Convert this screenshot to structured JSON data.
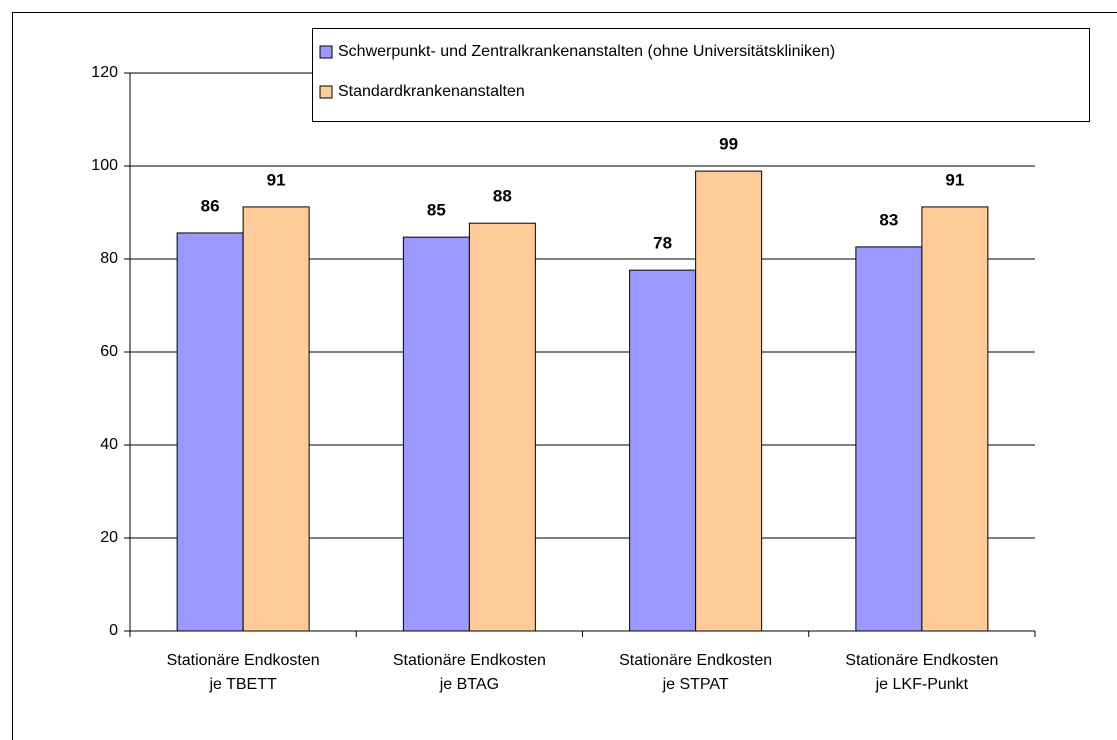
{
  "chart_data": {
    "type": "bar",
    "categories": [
      [
        "Stationäre Endkosten",
        "je TBETT"
      ],
      [
        "Stationäre Endkosten",
        "je BTAG"
      ],
      [
        "Stationäre Endkosten",
        "je STPAT"
      ],
      [
        "Stationäre Endkosten",
        "je LKF-Punkt"
      ]
    ],
    "series": [
      {
        "name": "Schwerpunkt- und Zentralkrankenanstalten (ohne Universitätskliniken)",
        "color": "#9999ff",
        "values": [
          85.6,
          84.7,
          77.6,
          82.6
        ],
        "value_labels": [
          "86",
          "85",
          "78",
          "83"
        ]
      },
      {
        "name": "Standardkrankenanstalten",
        "color": "#ffcc99",
        "values": [
          91.2,
          87.7,
          98.9,
          91.2
        ],
        "value_labels": [
          "91",
          "88",
          "99",
          "91"
        ]
      }
    ],
    "ylim": [
      0,
      120
    ],
    "yticks": [
      0,
      20,
      40,
      60,
      80,
      100,
      120
    ],
    "grid": true
  }
}
